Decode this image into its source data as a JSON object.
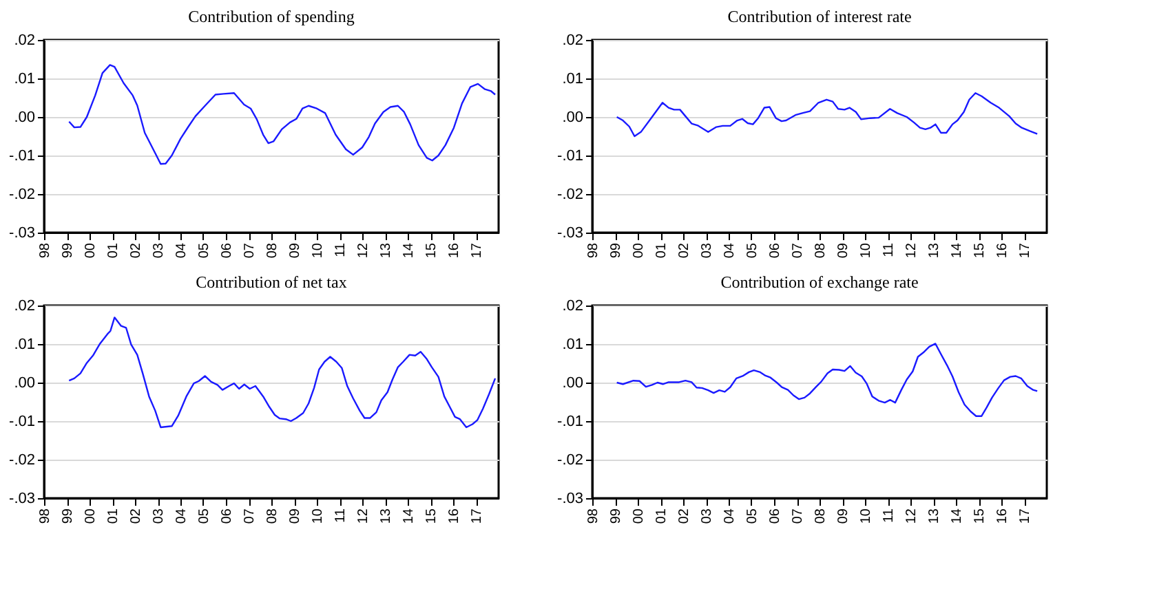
{
  "chart_data": [
    {
      "type": "line",
      "title": "Contribution of spending",
      "color": "#1a1aff",
      "grid": "y",
      "marker": "none",
      "line_style": "solid",
      "xlim": [
        1998,
        2018
      ],
      "ylim": [
        -0.03,
        0.02
      ],
      "xticks": [
        {
          "value": 1998,
          "label": "98"
        },
        {
          "value": 1999,
          "label": "99"
        },
        {
          "value": 2000,
          "label": "00"
        },
        {
          "value": 2001,
          "label": "01"
        },
        {
          "value": 2002,
          "label": "02"
        },
        {
          "value": 2003,
          "label": "03"
        },
        {
          "value": 2004,
          "label": "04"
        },
        {
          "value": 2005,
          "label": "05"
        },
        {
          "value": 2006,
          "label": "06"
        },
        {
          "value": 2007,
          "label": "07"
        },
        {
          "value": 2008,
          "label": "08"
        },
        {
          "value": 2009,
          "label": "09"
        },
        {
          "value": 2010,
          "label": "10"
        },
        {
          "value": 2011,
          "label": "11"
        },
        {
          "value": 2012,
          "label": "12"
        },
        {
          "value": 2013,
          "label": "13"
        },
        {
          "value": 2014,
          "label": "14"
        },
        {
          "value": 2015,
          "label": "15"
        },
        {
          "value": 2016,
          "label": "16"
        },
        {
          "value": 2017,
          "label": "17"
        }
      ],
      "yticks": [
        {
          "value": -0.03,
          "label": "-.03"
        },
        {
          "value": -0.02,
          "label": "-.02"
        },
        {
          "value": -0.01,
          "label": "-.01"
        },
        {
          "value": 0,
          "label": ".00"
        },
        {
          "value": 0.01,
          "label": ".01"
        },
        {
          "value": 0.02,
          "label": ".02"
        }
      ],
      "x": [
        1999.1,
        1999.33,
        1999.6,
        1999.88,
        2000.25,
        2000.57,
        2000.9,
        2001.1,
        2001.5,
        2001.9,
        2002.1,
        2002.43,
        2002.9,
        2003.13,
        2003.35,
        2003.62,
        2004.0,
        2004.35,
        2004.66,
        2005.08,
        2005.54,
        2005.9,
        2006.36,
        2006.8,
        2007.09,
        2007.36,
        2007.64,
        2007.87,
        2008.1,
        2008.46,
        2008.82,
        2009.1,
        2009.37,
        2009.64,
        2010.0,
        2010.37,
        2010.83,
        2011.28,
        2011.6,
        2012.0,
        2012.29,
        2012.56,
        2012.93,
        2013.24,
        2013.57,
        2013.84,
        2014.11,
        2014.48,
        2014.84,
        2015.08,
        2015.35,
        2015.66,
        2016.03,
        2016.39,
        2016.76,
        2017.09,
        2017.4,
        2017.67,
        2017.85
      ],
      "values": [
        -0.0012,
        -0.0027,
        -0.0026,
        0,
        0.0056,
        0.0114,
        0.0135,
        0.013,
        0.0088,
        0.0056,
        0.003,
        -0.0041,
        -0.0095,
        -0.0122,
        -0.0121,
        -0.01,
        -0.0057,
        -0.0025,
        0.0002,
        0.0029,
        0.0058,
        0.006,
        0.0062,
        0.0032,
        0.0022,
        -0.0006,
        -0.0046,
        -0.0068,
        -0.0063,
        -0.0032,
        -0.0014,
        -0.0005,
        0.0022,
        0.0029,
        0.0022,
        0.001,
        -0.0046,
        -0.0084,
        -0.0098,
        -0.0079,
        -0.0052,
        -0.0017,
        0.0013,
        0.0026,
        0.0029,
        0.0013,
        -0.0019,
        -0.0073,
        -0.0106,
        -0.0113,
        -0.01,
        -0.0073,
        -0.0028,
        0.0035,
        0.0078,
        0.0086,
        0.0072,
        0.0067,
        0.0058
      ]
    },
    {
      "type": "line",
      "title": "Contribution of interest rate",
      "color": "#1a1aff",
      "grid": "y",
      "marker": "none",
      "line_style": "solid",
      "xlim": [
        1998,
        2018
      ],
      "ylim": [
        -0.03,
        0.02
      ],
      "xticks": [
        {
          "value": 1998,
          "label": "98"
        },
        {
          "value": 1999,
          "label": "99"
        },
        {
          "value": 2000,
          "label": "00"
        },
        {
          "value": 2001,
          "label": "01"
        },
        {
          "value": 2002,
          "label": "02"
        },
        {
          "value": 2003,
          "label": "03"
        },
        {
          "value": 2004,
          "label": "04"
        },
        {
          "value": 2005,
          "label": "05"
        },
        {
          "value": 2006,
          "label": "06"
        },
        {
          "value": 2007,
          "label": "07"
        },
        {
          "value": 2008,
          "label": "08"
        },
        {
          "value": 2009,
          "label": "09"
        },
        {
          "value": 2010,
          "label": "10"
        },
        {
          "value": 2011,
          "label": "11"
        },
        {
          "value": 2012,
          "label": "12"
        },
        {
          "value": 2013,
          "label": "13"
        },
        {
          "value": 2014,
          "label": "14"
        },
        {
          "value": 2015,
          "label": "15"
        },
        {
          "value": 2016,
          "label": "16"
        },
        {
          "value": 2017,
          "label": "17"
        }
      ],
      "yticks": [
        {
          "value": -0.03,
          "label": "-.03"
        },
        {
          "value": -0.02,
          "label": "-.02"
        },
        {
          "value": -0.01,
          "label": "-.01"
        },
        {
          "value": 0,
          "label": ".00"
        },
        {
          "value": 0.01,
          "label": ".01"
        },
        {
          "value": 0.02,
          "label": ".02"
        }
      ],
      "x": [
        1999.08,
        1999.35,
        1999.63,
        1999.86,
        2000.14,
        2000.63,
        2001.09,
        2001.36,
        2001.6,
        2001.86,
        2002.1,
        2002.37,
        2002.64,
        2003.1,
        2003.46,
        2003.74,
        2004.07,
        2004.38,
        2004.6,
        2004.84,
        2005.07,
        2005.3,
        2005.57,
        2005.8,
        2006.08,
        2006.33,
        2006.53,
        2006.94,
        2007.3,
        2007.58,
        2007.95,
        2008.31,
        2008.58,
        2008.82,
        2009.1,
        2009.32,
        2009.6,
        2009.83,
        2010.23,
        2010.6,
        2011.1,
        2011.42,
        2011.84,
        2012.15,
        2012.42,
        2012.66,
        2012.88,
        2013.1,
        2013.34,
        2013.58,
        2013.85,
        2014.07,
        2014.35,
        2014.59,
        2014.86,
        2015.13,
        2015.53,
        2015.9,
        2016.35,
        2016.63,
        2016.9,
        2017.27,
        2017.58
      ],
      "values": [
        0,
        -0.0009,
        -0.0025,
        -0.005,
        -0.0039,
        0,
        0.0037,
        0.0024,
        0.0019,
        0.0019,
        0.0002,
        -0.0017,
        -0.0022,
        -0.0039,
        -0.0026,
        -0.0023,
        -0.0023,
        -0.0009,
        -0.0005,
        -0.0016,
        -0.0019,
        -0.0003,
        0.0024,
        0.0026,
        -0.0003,
        -0.0011,
        -0.0009,
        0.0005,
        0.0011,
        0.0015,
        0.0037,
        0.0045,
        0.004,
        0.0021,
        0.0019,
        0.0024,
        0.0013,
        -0.0006,
        -0.0003,
        -0.0002,
        0.0021,
        0.001,
        0,
        -0.0014,
        -0.0028,
        -0.0032,
        -0.0028,
        -0.0019,
        -0.0041,
        -0.0041,
        -0.0019,
        -0.0009,
        0.0013,
        0.0045,
        0.0062,
        0.0054,
        0.0037,
        0.0024,
        0.0002,
        -0.0017,
        -0.0028,
        -0.0037,
        -0.0044
      ]
    },
    {
      "type": "line",
      "title": "Contribution of net tax",
      "color": "#1a1aff",
      "grid": "y",
      "marker": "none",
      "line_style": "solid",
      "xlim": [
        1998,
        2018
      ],
      "ylim": [
        -0.03,
        0.02
      ],
      "xticks": [
        {
          "value": 1998,
          "label": "98"
        },
        {
          "value": 1999,
          "label": "99"
        },
        {
          "value": 2000,
          "label": "00"
        },
        {
          "value": 2001,
          "label": "01"
        },
        {
          "value": 2002,
          "label": "02"
        },
        {
          "value": 2003,
          "label": "03"
        },
        {
          "value": 2004,
          "label": "04"
        },
        {
          "value": 2005,
          "label": "05"
        },
        {
          "value": 2006,
          "label": "06"
        },
        {
          "value": 2007,
          "label": "07"
        },
        {
          "value": 2008,
          "label": "08"
        },
        {
          "value": 2009,
          "label": "09"
        },
        {
          "value": 2010,
          "label": "10"
        },
        {
          "value": 2011,
          "label": "11"
        },
        {
          "value": 2012,
          "label": "12"
        },
        {
          "value": 2013,
          "label": "13"
        },
        {
          "value": 2014,
          "label": "14"
        },
        {
          "value": 2015,
          "label": "15"
        },
        {
          "value": 2016,
          "label": "16"
        },
        {
          "value": 2017,
          "label": "17"
        }
      ],
      "yticks": [
        {
          "value": -0.03,
          "label": "-.03"
        },
        {
          "value": -0.02,
          "label": "-.02"
        },
        {
          "value": -0.01,
          "label": "-.01"
        },
        {
          "value": 0,
          "label": ".00"
        },
        {
          "value": 0.01,
          "label": ".01"
        },
        {
          "value": 0.02,
          "label": ".02"
        }
      ],
      "x": [
        1999.1,
        1999.33,
        1999.6,
        1999.88,
        2000.15,
        2000.46,
        2000.79,
        2000.92,
        2001.1,
        2001.39,
        2001.61,
        2001.83,
        2002.1,
        2002.34,
        2002.62,
        2002.89,
        2003.13,
        2003.62,
        2003.9,
        2004.26,
        2004.59,
        2004.81,
        2005.08,
        2005.35,
        2005.63,
        2005.85,
        2006.14,
        2006.36,
        2006.58,
        2006.81,
        2007.05,
        2007.3,
        2007.64,
        2007.91,
        2008.15,
        2008.36,
        2008.64,
        2008.86,
        2009.1,
        2009.4,
        2009.64,
        2009.88,
        2010.1,
        2010.34,
        2010.59,
        2010.86,
        2011.1,
        2011.34,
        2011.6,
        2011.89,
        2012.1,
        2012.34,
        2012.62,
        2012.84,
        2013.11,
        2013.33,
        2013.57,
        2013.8,
        2014.08,
        2014.33,
        2014.57,
        2014.84,
        2015.06,
        2015.35,
        2015.61,
        2015.85,
        2016.08,
        2016.3,
        2016.58,
        2016.85,
        2017.07,
        2017.31,
        2017.58,
        2017.85
      ],
      "values": [
        0.0005,
        0.0011,
        0.0024,
        0.0051,
        0.007,
        0.0101,
        0.0126,
        0.0134,
        0.0169,
        0.0147,
        0.0142,
        0.0099,
        0.0072,
        0.0024,
        -0.0036,
        -0.0073,
        -0.0116,
        -0.0113,
        -0.0086,
        -0.0036,
        -0.0002,
        0.0004,
        0.0017,
        0.0002,
        -0.0006,
        -0.0019,
        -0.0009,
        -0.0002,
        -0.0016,
        -0.0005,
        -0.0016,
        -0.0009,
        -0.0036,
        -0.0063,
        -0.0084,
        -0.0093,
        -0.0095,
        -0.01,
        -0.0092,
        -0.0079,
        -0.0054,
        -0.0014,
        0.0034,
        0.0054,
        0.0067,
        0.0054,
        0.0038,
        -0.0009,
        -0.0041,
        -0.0073,
        -0.0092,
        -0.0092,
        -0.0077,
        -0.0046,
        -0.0025,
        0.0008,
        0.004,
        0.0054,
        0.0072,
        0.007,
        0.008,
        0.0061,
        0.004,
        0.0015,
        -0.0036,
        -0.0063,
        -0.0089,
        -0.0095,
        -0.0116,
        -0.0108,
        -0.0097,
        -0.0068,
        -0.003,
        0.0011
      ]
    },
    {
      "type": "line",
      "title": "Contribution of exchange rate",
      "color": "#1a1aff",
      "grid": "y",
      "marker": "none",
      "line_style": "solid",
      "xlim": [
        1998,
        2018
      ],
      "ylim": [
        -0.03,
        0.02
      ],
      "xticks": [
        {
          "value": 1998,
          "label": "98"
        },
        {
          "value": 1999,
          "label": "99"
        },
        {
          "value": 2000,
          "label": "00"
        },
        {
          "value": 2001,
          "label": "01"
        },
        {
          "value": 2002,
          "label": "02"
        },
        {
          "value": 2003,
          "label": "03"
        },
        {
          "value": 2004,
          "label": "04"
        },
        {
          "value": 2005,
          "label": "05"
        },
        {
          "value": 2006,
          "label": "06"
        },
        {
          "value": 2007,
          "label": "07"
        },
        {
          "value": 2008,
          "label": "08"
        },
        {
          "value": 2009,
          "label": "09"
        },
        {
          "value": 2010,
          "label": "10"
        },
        {
          "value": 2011,
          "label": "11"
        },
        {
          "value": 2012,
          "label": "12"
        },
        {
          "value": 2013,
          "label": "13"
        },
        {
          "value": 2014,
          "label": "14"
        },
        {
          "value": 2015,
          "label": "15"
        },
        {
          "value": 2016,
          "label": "16"
        },
        {
          "value": 2017,
          "label": "17"
        }
      ],
      "yticks": [
        {
          "value": -0.03,
          "label": "-.03"
        },
        {
          "value": -0.02,
          "label": "-.02"
        },
        {
          "value": -0.01,
          "label": "-.01"
        },
        {
          "value": 0,
          "label": ".00"
        },
        {
          "value": 0.01,
          "label": ".01"
        },
        {
          "value": 0.02,
          "label": ".02"
        }
      ],
      "x": [
        1999.08,
        1999.35,
        1999.81,
        2000.08,
        2000.36,
        2000.63,
        2000.87,
        2001.12,
        2001.36,
        2001.82,
        2002.1,
        2002.37,
        2002.59,
        2002.83,
        2003.1,
        2003.34,
        2003.59,
        2003.83,
        2004.07,
        2004.34,
        2004.62,
        2004.89,
        2005.11,
        2005.39,
        2005.62,
        2005.84,
        2006.12,
        2006.34,
        2006.61,
        2006.85,
        2007.09,
        2007.34,
        2007.58,
        2007.85,
        2008.07,
        2008.35,
        2008.58,
        2008.86,
        2009.1,
        2009.35,
        2009.59,
        2009.86,
        2010.08,
        2010.32,
        2010.6,
        2010.87,
        2011.11,
        2011.33,
        2011.6,
        2011.84,
        2012.1,
        2012.33,
        2012.57,
        2012.83,
        2013.1,
        2013.34,
        2013.61,
        2013.85,
        2014.12,
        2014.38,
        2014.65,
        2014.89,
        2015.13,
        2015.35,
        2015.59,
        2015.86,
        2016.12,
        2016.39,
        2016.63,
        2016.87,
        2017.14,
        2017.4,
        2017.58
      ],
      "values": [
        0,
        -0.0004,
        0.0005,
        0.0004,
        -0.0011,
        -0.0006,
        0,
        -0.0004,
        0.0001,
        0.0001,
        0.0005,
        0.0001,
        -0.0013,
        -0.0014,
        -0.002,
        -0.0027,
        -0.002,
        -0.0024,
        -0.0012,
        0.0011,
        0.0017,
        0.0027,
        0.0032,
        0.0027,
        0.0018,
        0.0013,
        0,
        -0.0012,
        -0.0019,
        -0.0033,
        -0.0043,
        -0.0039,
        -0.0028,
        -0.0011,
        0.0002,
        0.0024,
        0.0034,
        0.0033,
        0.003,
        0.0043,
        0.0026,
        0.0016,
        -0.0003,
        -0.0036,
        -0.0047,
        -0.0052,
        -0.0045,
        -0.0052,
        -0.0019,
        0.0008,
        0.0029,
        0.0067,
        0.0078,
        0.0093,
        0.0101,
        0.0074,
        0.0045,
        0.0016,
        -0.0025,
        -0.0057,
        -0.0075,
        -0.0087,
        -0.0087,
        -0.0065,
        -0.0039,
        -0.0015,
        0.0006,
        0.0015,
        0.0017,
        0.0011,
        -0.0009,
        -0.0019,
        -0.0022
      ]
    }
  ]
}
